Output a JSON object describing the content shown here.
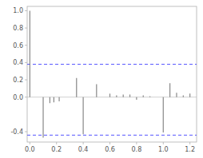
{
  "chart_data": {
    "type": "stem",
    "x": [
      0.0,
      0.1,
      0.15,
      0.18,
      0.22,
      0.35,
      0.4,
      0.5,
      0.6,
      0.65,
      0.7,
      0.75,
      0.8,
      0.85,
      0.9,
      1.0,
      1.05,
      1.1,
      1.15,
      1.2
    ],
    "values": [
      1.0,
      -0.47,
      -0.07,
      -0.06,
      -0.05,
      0.22,
      -0.43,
      0.15,
      0.04,
      0.02,
      0.03,
      0.03,
      -0.03,
      0.02,
      0.01,
      -0.41,
      0.16,
      0.05,
      0.02,
      0.04
    ],
    "color": "#888888",
    "reference_lines": [
      {
        "value": 0.38,
        "color": "#5555ff",
        "line_style": "dashed"
      },
      {
        "value": -0.44,
        "color": "#5555ff",
        "line_style": "dashed"
      }
    ],
    "xlim": [
      -0.02,
      1.25
    ],
    "ylim": [
      -0.52,
      1.05
    ],
    "xticks": [
      {
        "value": 0.0,
        "label": "0.0"
      },
      0.2,
      0.4,
      0.6,
      0.8,
      {
        "value": 1.0,
        "label": "1.0"
      },
      1.2
    ],
    "yticks": [
      -0.4,
      {
        "value": 0.0,
        "label": "0.0"
      },
      0.2,
      0.4,
      0.6,
      0.8,
      {
        "value": 1.0,
        "label": "1.0"
      }
    ],
    "grid": false
  }
}
